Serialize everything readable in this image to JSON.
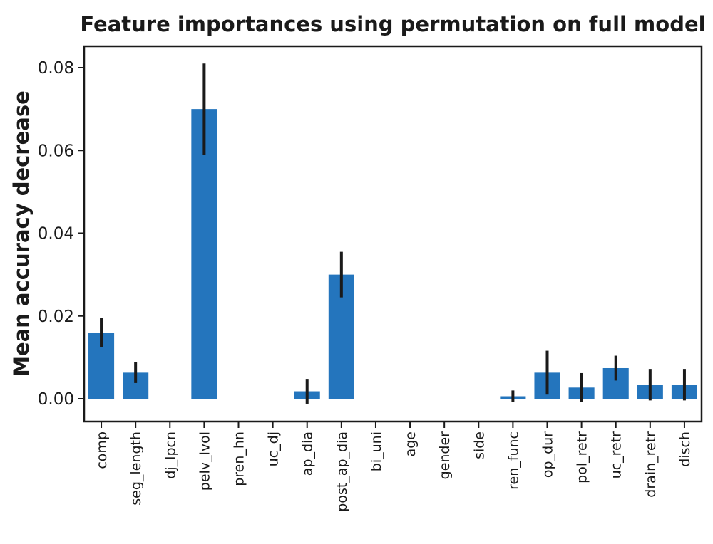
{
  "chart_data": {
    "type": "bar",
    "title": "Feature importances using permutation on full model",
    "xlabel": "",
    "ylabel": "Mean accuracy decrease",
    "categories": [
      "comp",
      "seg_length",
      "dj_lpcn",
      "pelv_lvol",
      "pren_hn",
      "uc_dj",
      "ap_dia",
      "post_ap_dia",
      "bi_uni",
      "age",
      "gender",
      "side",
      "ren_func",
      "op_dur",
      "pol_retr",
      "uc_retr",
      "drain_retr",
      "disch"
    ],
    "values": [
      0.016,
      0.0063,
      0.0,
      0.07,
      0.0,
      0.0,
      0.0018,
      0.03,
      0.0,
      0.0,
      0.0,
      0.0,
      0.0006,
      0.0063,
      0.0027,
      0.0074,
      0.0034,
      0.0034
    ],
    "errors": [
      0.0036,
      0.0025,
      0.0,
      0.011,
      0.0,
      0.0,
      0.003,
      0.0055,
      0.0,
      0.0,
      0.0,
      0.0,
      0.0014,
      0.0053,
      0.0035,
      0.003,
      0.0038,
      0.0038
    ],
    "ylim": [
      -0.0055,
      0.085
    ],
    "yticks": [
      "0.00",
      "0.02",
      "0.04",
      "0.06",
      "0.08"
    ],
    "ytick_values": [
      0.0,
      0.02,
      0.04,
      0.06,
      0.08
    ],
    "grid": false,
    "colors": {
      "bar": "#2475bd",
      "error": "#1a1a1a",
      "axis": "#1a1a1a"
    }
  }
}
